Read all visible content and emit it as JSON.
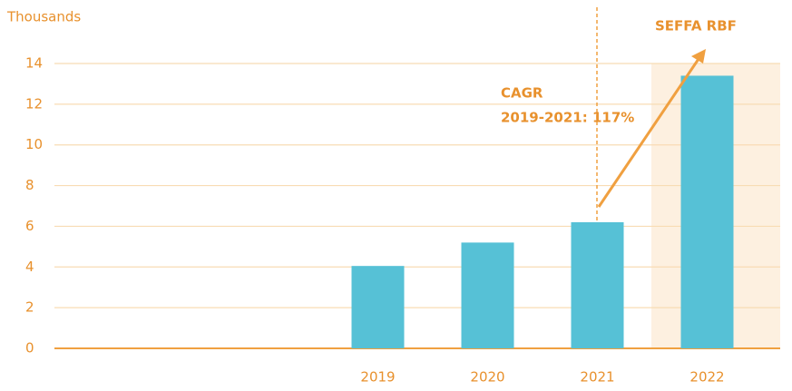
{
  "chart_data": {
    "type": "bar",
    "y_axis_label": "Thousands",
    "categories": [
      "2019",
      "2020",
      "2021",
      "2022"
    ],
    "values": [
      4.05,
      5.2,
      6.2,
      13.4
    ],
    "color": "#56c1d6",
    "ylim": [
      0,
      14
    ],
    "yticks": [
      0,
      2,
      4,
      6,
      8,
      10,
      12,
      14
    ],
    "grid": true,
    "annotations": {
      "highlight": "SEFFA RBF",
      "cagr_title": "CAGR",
      "cagr_text": "2019-2021: 117%"
    }
  }
}
